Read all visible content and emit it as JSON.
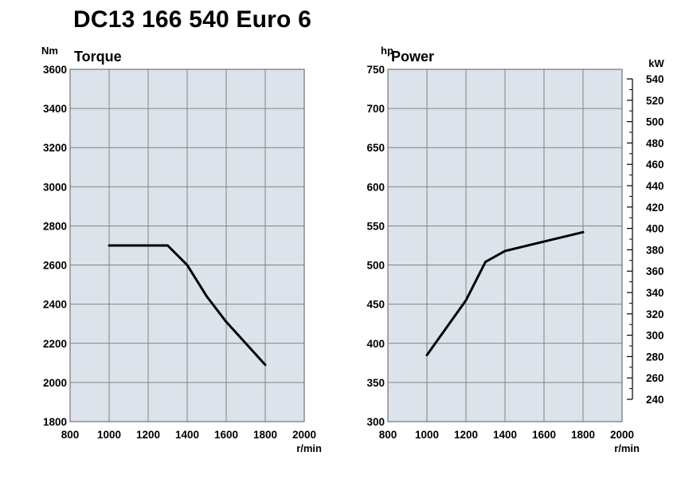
{
  "title": "DC13 166 540 Euro 6",
  "chart_data": [
    {
      "type": "line",
      "title": "Torque",
      "ylabel": "Nm",
      "xlabel": "r/min",
      "xlim": [
        800,
        2000
      ],
      "ylim": [
        1800,
        3600
      ],
      "xticks": [
        800,
        1000,
        1200,
        1400,
        1600,
        1800,
        2000
      ],
      "yticks": [
        1800,
        2000,
        2200,
        2400,
        2600,
        2800,
        3000,
        3200,
        3400,
        3600
      ],
      "grid": true,
      "series": [
        {
          "x": [
            1000,
            1300,
            1400,
            1500,
            1600,
            1800
          ],
          "y": [
            2700,
            2700,
            2600,
            2440,
            2310,
            2090
          ]
        }
      ]
    },
    {
      "type": "line",
      "title": "Power",
      "ylabel": "hp",
      "xlabel": "r/min",
      "xlim": [
        800,
        2000
      ],
      "ylim": [
        300,
        750
      ],
      "xticks": [
        800,
        1000,
        1200,
        1400,
        1600,
        1800,
        2000
      ],
      "yticks": [
        300,
        350,
        400,
        450,
        500,
        550,
        600,
        650,
        700,
        750
      ],
      "y2label": "kW",
      "y2ticks": [
        240,
        260,
        280,
        300,
        320,
        340,
        360,
        380,
        400,
        420,
        440,
        460,
        480,
        500,
        520,
        540
      ],
      "grid": true,
      "series": [
        {
          "x": [
            1000,
            1200,
            1300,
            1400,
            1600,
            1800
          ],
          "y": [
            385,
            455,
            504,
            518,
            530,
            542
          ]
        }
      ]
    }
  ]
}
